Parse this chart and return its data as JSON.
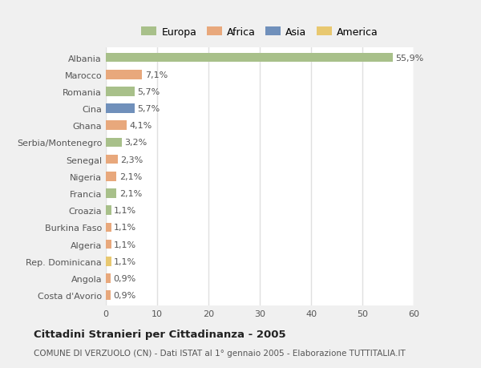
{
  "categories": [
    "Albania",
    "Marocco",
    "Romania",
    "Cina",
    "Ghana",
    "Serbia/Montenegro",
    "Senegal",
    "Nigeria",
    "Francia",
    "Croazia",
    "Burkina Faso",
    "Algeria",
    "Rep. Dominicana",
    "Angola",
    "Costa d'Avorio"
  ],
  "values": [
    55.9,
    7.1,
    5.7,
    5.7,
    4.1,
    3.2,
    2.3,
    2.1,
    2.1,
    1.1,
    1.1,
    1.1,
    1.1,
    0.9,
    0.9
  ],
  "labels": [
    "55,9%",
    "7,1%",
    "5,7%",
    "5,7%",
    "4,1%",
    "3,2%",
    "2,3%",
    "2,1%",
    "2,1%",
    "1,1%",
    "1,1%",
    "1,1%",
    "1,1%",
    "0,9%",
    "0,9%"
  ],
  "colors": [
    "#a8c08a",
    "#e8a87c",
    "#a8c08a",
    "#7090bb",
    "#e8a87c",
    "#a8c08a",
    "#e8a87c",
    "#e8a87c",
    "#a8c08a",
    "#a8c08a",
    "#e8a87c",
    "#e8a87c",
    "#e8c870",
    "#e8a87c",
    "#e8a87c"
  ],
  "legend": {
    "Europa": "#a8c08a",
    "Africa": "#e8a87c",
    "Asia": "#7090bb",
    "America": "#e8c870"
  },
  "xlim": [
    0,
    60
  ],
  "xticks": [
    0,
    10,
    20,
    30,
    40,
    50,
    60
  ],
  "title": "Cittadini Stranieri per Cittadinanza - 2005",
  "subtitle": "COMUNE DI VERZUOLO (CN) - Dati ISTAT al 1° gennaio 2005 - Elaborazione TUTTITALIA.IT",
  "plot_bg": "#ffffff",
  "fig_bg": "#f0f0f0",
  "grid_color": "#e0e0e0",
  "bar_height": 0.55,
  "label_fontsize": 8,
  "tick_fontsize": 8,
  "legend_fontsize": 9,
  "title_fontsize": 9.5,
  "subtitle_fontsize": 7.5
}
